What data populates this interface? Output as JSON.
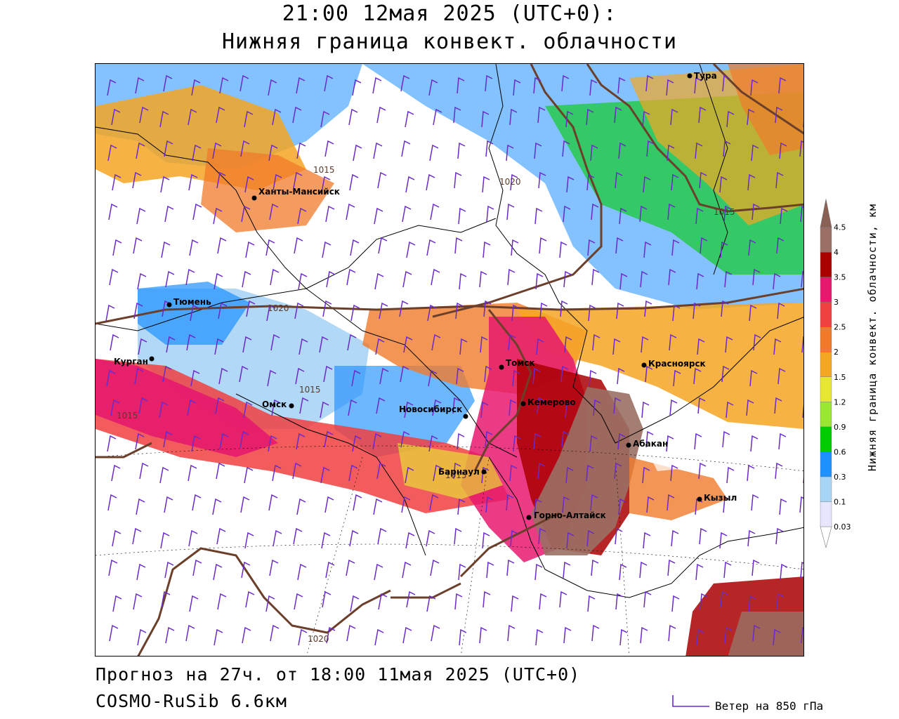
{
  "header": {
    "title_line1": "21:00 12мая 2025 (UTC+0):",
    "title_line2": "Нижняя граница конвект. облачности"
  },
  "footer": {
    "forecast": "Прогноз на 27ч. от 18:00 11мая 2025 (UTC+0)",
    "model": "COSMO-RuSib 6.6км",
    "wind_legend": "Ветер на 850 гПа"
  },
  "colorbar": {
    "axis_label": "Нижняя граница конвект. облачности, км",
    "levels": [
      "0.03",
      "0.1",
      "0.3",
      "0.6",
      "0.9",
      "1.2",
      "1.5",
      "2",
      "2.5",
      "3",
      "3.5",
      "4",
      "4.5"
    ],
    "colors": [
      "#ffffff",
      "#e6e6ff",
      "#a8d4f5",
      "#1e90ff",
      "#00cc00",
      "#99e633",
      "#e6e633",
      "#f5a623",
      "#f07a2a",
      "#f04040",
      "#e6196e",
      "#aa0000",
      "#9a7064",
      "#8a6054"
    ]
  },
  "map": {
    "cities": [
      {
        "name": "Тура"
      },
      {
        "name": "Ханты-Мансийск"
      },
      {
        "name": "Тюмень"
      },
      {
        "name": "Курган"
      },
      {
        "name": "Омск"
      },
      {
        "name": "Новосибирск"
      },
      {
        "name": "Томск"
      },
      {
        "name": "Кемерово"
      },
      {
        "name": "Красноярск"
      },
      {
        "name": "Абакан"
      },
      {
        "name": "Барнаул"
      },
      {
        "name": "Горно-Алтайск"
      },
      {
        "name": "Кызыл"
      }
    ],
    "isobars": [
      "1015",
      "1020",
      "1020",
      "1015",
      "1015",
      "1015",
      "1015",
      "1020"
    ]
  }
}
